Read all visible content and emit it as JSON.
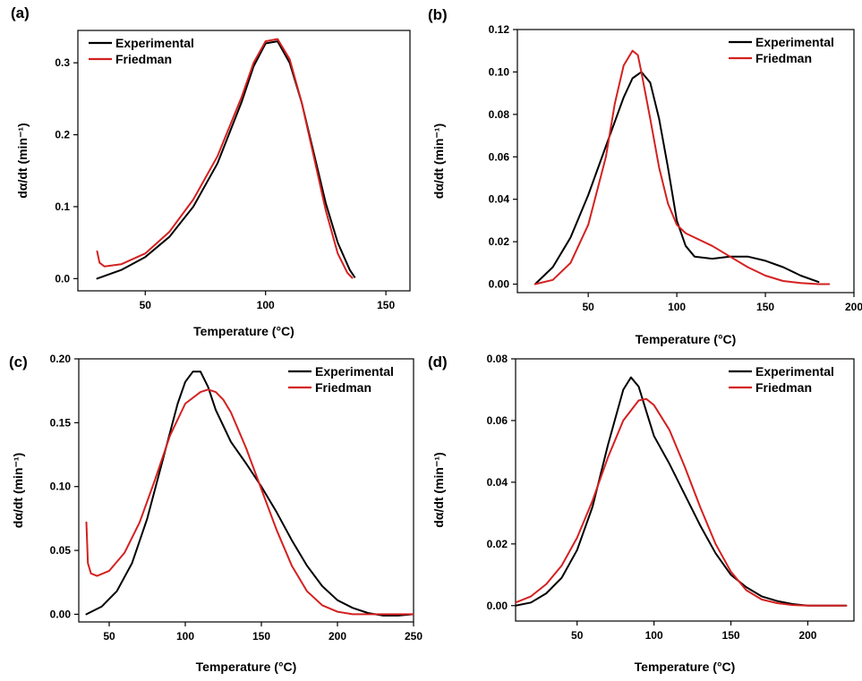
{
  "colors": {
    "experimental": "#000000",
    "friedman": "#d42020"
  },
  "chart_data": [
    {
      "panel": "(a)",
      "type": "line",
      "xlabel": "Temperature (°C)",
      "ylabel": "dα/dt (min⁻¹)",
      "xlim": [
        22,
        160
      ],
      "ylim": [
        -0.017,
        0.345
      ],
      "xticks": [
        50,
        100,
        150
      ],
      "yticks": [
        0.0,
        0.1,
        0.2,
        0.3
      ],
      "ytick_labels": [
        "0.0",
        "0.1",
        "0.2",
        "0.3"
      ],
      "legend_position": "top-left",
      "series": [
        {
          "name": "Experimental",
          "color": "#000000",
          "x": [
            30,
            40,
            50,
            60,
            70,
            80,
            90,
            95,
            100,
            105,
            110,
            115,
            120,
            125,
            130,
            135,
            137
          ],
          "y": [
            0.0,
            0.012,
            0.03,
            0.058,
            0.1,
            0.16,
            0.245,
            0.295,
            0.327,
            0.33,
            0.3,
            0.245,
            0.175,
            0.105,
            0.05,
            0.012,
            0.002
          ]
        },
        {
          "name": "Friedman",
          "color": "#d42020",
          "x": [
            30,
            31,
            33,
            40,
            50,
            60,
            70,
            80,
            90,
            95,
            100,
            105,
            110,
            115,
            120,
            125,
            130,
            134,
            136
          ],
          "y": [
            0.038,
            0.022,
            0.017,
            0.02,
            0.035,
            0.065,
            0.11,
            0.17,
            0.252,
            0.3,
            0.33,
            0.333,
            0.305,
            0.245,
            0.17,
            0.095,
            0.035,
            0.008,
            0.001
          ]
        }
      ]
    },
    {
      "panel": "(b)",
      "type": "line",
      "xlabel": "Temperature (°C)",
      "ylabel": "dα/dt (min⁻¹)",
      "xlim": [
        10,
        200
      ],
      "ylim": [
        -0.004,
        0.12
      ],
      "xticks": [
        50,
        100,
        150,
        200
      ],
      "yticks": [
        0.0,
        0.02,
        0.04,
        0.06,
        0.08,
        0.1,
        0.12
      ],
      "ytick_labels": [
        "0.00",
        "0.02",
        "0.04",
        "0.06",
        "0.08",
        "0.10",
        "0.12"
      ],
      "legend_position": "top-right",
      "series": [
        {
          "name": "Experimental",
          "color": "#000000",
          "x": [
            20,
            30,
            40,
            50,
            60,
            70,
            75,
            80,
            85,
            90,
            95,
            100,
            105,
            110,
            120,
            130,
            140,
            150,
            160,
            170,
            180
          ],
          "y": [
            0.0,
            0.008,
            0.022,
            0.042,
            0.065,
            0.088,
            0.097,
            0.1,
            0.095,
            0.078,
            0.055,
            0.03,
            0.018,
            0.013,
            0.012,
            0.013,
            0.013,
            0.011,
            0.008,
            0.004,
            0.001
          ]
        },
        {
          "name": "Friedman",
          "color": "#d42020",
          "x": [
            20,
            30,
            40,
            50,
            60,
            65,
            70,
            75,
            78,
            80,
            85,
            90,
            95,
            100,
            105,
            110,
            120,
            130,
            140,
            150,
            160,
            170,
            180,
            186
          ],
          "y": [
            0.0,
            0.002,
            0.01,
            0.028,
            0.06,
            0.085,
            0.103,
            0.11,
            0.108,
            0.1,
            0.078,
            0.055,
            0.038,
            0.028,
            0.024,
            0.022,
            0.018,
            0.013,
            0.008,
            0.004,
            0.0015,
            0.0005,
            0.0,
            0.0
          ]
        }
      ]
    },
    {
      "panel": "(c)",
      "type": "line",
      "xlabel": "Temperature (°C)",
      "ylabel": "dα/dt (min⁻¹)",
      "xlim": [
        30,
        250
      ],
      "ylim": [
        -0.006,
        0.2
      ],
      "xticks": [
        50,
        100,
        150,
        200,
        250
      ],
      "yticks": [
        0.0,
        0.05,
        0.1,
        0.15,
        0.2
      ],
      "ytick_labels": [
        "0.00",
        "0.05",
        "0.10",
        "0.15",
        "0.20"
      ],
      "legend_position": "top-right",
      "series": [
        {
          "name": "Experimental",
          "color": "#000000",
          "x": [
            35,
            45,
            55,
            65,
            75,
            85,
            95,
            100,
            105,
            110,
            115,
            120,
            130,
            140,
            150,
            160,
            170,
            180,
            190,
            200,
            210,
            220,
            230,
            240,
            250
          ],
          "y": [
            0.0,
            0.006,
            0.018,
            0.04,
            0.075,
            0.12,
            0.165,
            0.182,
            0.19,
            0.19,
            0.178,
            0.16,
            0.135,
            0.118,
            0.1,
            0.08,
            0.058,
            0.038,
            0.022,
            0.011,
            0.005,
            0.001,
            -0.001,
            -0.001,
            0.0
          ]
        },
        {
          "name": "Friedman",
          "color": "#d42020",
          "x": [
            35,
            36,
            38,
            42,
            50,
            60,
            70,
            80,
            90,
            100,
            110,
            115,
            120,
            125,
            130,
            140,
            150,
            160,
            170,
            180,
            190,
            200,
            210,
            220,
            230,
            250
          ],
          "y": [
            0.072,
            0.04,
            0.032,
            0.03,
            0.034,
            0.048,
            0.072,
            0.105,
            0.14,
            0.165,
            0.174,
            0.176,
            0.174,
            0.168,
            0.158,
            0.13,
            0.098,
            0.066,
            0.038,
            0.018,
            0.007,
            0.002,
            0.0,
            0.0,
            0.0,
            0.0
          ]
        }
      ]
    },
    {
      "panel": "(d)",
      "type": "line",
      "xlabel": "Temperature (°C)",
      "ylabel": "dα/dt (min⁻¹)",
      "xlim": [
        10,
        230
      ],
      "ylim": [
        -0.005,
        0.08
      ],
      "xticks": [
        50,
        100,
        150,
        200
      ],
      "yticks": [
        0.0,
        0.02,
        0.04,
        0.06,
        0.08
      ],
      "ytick_labels": [
        "0.00",
        "0.02",
        "0.04",
        "0.06",
        "0.08"
      ],
      "legend_position": "top-right",
      "series": [
        {
          "name": "Experimental",
          "color": "#000000",
          "x": [
            10,
            20,
            30,
            40,
            50,
            60,
            70,
            80,
            85,
            90,
            95,
            100,
            110,
            120,
            130,
            140,
            150,
            160,
            170,
            180,
            190,
            200,
            210,
            225
          ],
          "y": [
            0.0,
            0.001,
            0.004,
            0.009,
            0.018,
            0.032,
            0.052,
            0.07,
            0.074,
            0.071,
            0.063,
            0.055,
            0.046,
            0.036,
            0.026,
            0.017,
            0.01,
            0.006,
            0.003,
            0.0015,
            0.0005,
            0.0,
            0.0,
            0.0
          ]
        },
        {
          "name": "Friedman",
          "color": "#d42020",
          "x": [
            10,
            20,
            30,
            40,
            50,
            60,
            70,
            80,
            90,
            95,
            100,
            110,
            120,
            130,
            140,
            150,
            160,
            170,
            180,
            190,
            200,
            210,
            225
          ],
          "y": [
            0.001,
            0.003,
            0.007,
            0.013,
            0.022,
            0.034,
            0.048,
            0.06,
            0.0665,
            0.067,
            0.065,
            0.057,
            0.045,
            0.032,
            0.02,
            0.011,
            0.005,
            0.002,
            0.0008,
            0.0002,
            0.0,
            0.0,
            0.0
          ]
        }
      ]
    }
  ]
}
